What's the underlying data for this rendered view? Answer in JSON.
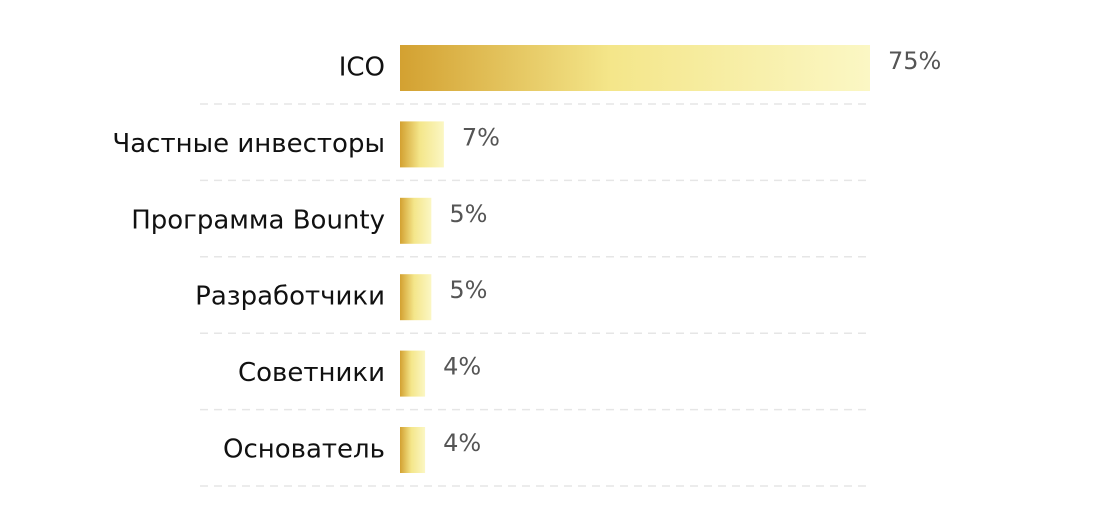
{
  "chart_data": {
    "type": "hbar",
    "categories": [
      "ICO",
      "Частные инвесторы",
      "Программа Bounty",
      "Разработчики",
      "Советники",
      "Основатель"
    ],
    "values": [
      75,
      7,
      5,
      5,
      4,
      4
    ],
    "value_labels": [
      "75%",
      "7%",
      "5%",
      "5%",
      "4%",
      "4%"
    ],
    "colors": [
      "#d3a131",
      "#f4e68a",
      "#fbf7c4"
    ],
    "xlim": [
      0,
      75
    ]
  }
}
